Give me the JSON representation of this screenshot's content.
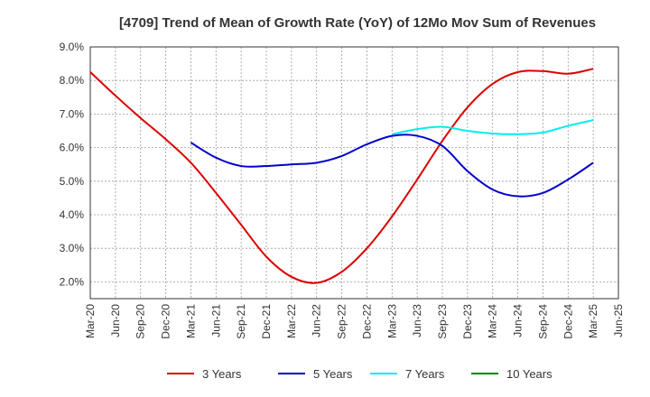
{
  "chart_data": {
    "type": "line",
    "title": "[4709]  Trend of Mean of Growth Rate (YoY) of 12Mo Mov Sum of Revenues",
    "xlabel": "",
    "ylabel": "",
    "ylim": [
      1.5,
      9.0
    ],
    "y_ticks": [
      2.0,
      3.0,
      4.0,
      5.0,
      6.0,
      7.0,
      8.0,
      9.0
    ],
    "y_tick_labels": [
      "2.0%",
      "3.0%",
      "4.0%",
      "5.0%",
      "6.0%",
      "7.0%",
      "8.0%",
      "9.0%"
    ],
    "x_tick_labels": [
      "Mar-20",
      "Jun-20",
      "Sep-20",
      "Dec-20",
      "Mar-21",
      "Jun-21",
      "Sep-21",
      "Dec-21",
      "Mar-22",
      "Jun-22",
      "Sep-22",
      "Dec-22",
      "Mar-23",
      "Jun-23",
      "Sep-23",
      "Dec-23",
      "Mar-24",
      "Jun-24",
      "Sep-24",
      "Dec-24",
      "Mar-25",
      "Jun-25"
    ],
    "grid": true,
    "legend_position": "bottom",
    "series": [
      {
        "name": "3 Years",
        "color": "#dd0000",
        "values": [
          8.25,
          7.55,
          6.88,
          6.25,
          5.55,
          4.65,
          3.7,
          2.75,
          2.15,
          1.97,
          2.3,
          3.0,
          3.95,
          5.05,
          6.2,
          7.2,
          7.9,
          8.25,
          8.28,
          8.2,
          8.35,
          null
        ]
      },
      {
        "name": "5 Years",
        "color": "#0000cc",
        "values": [
          null,
          null,
          null,
          null,
          6.15,
          5.7,
          5.45,
          5.45,
          5.5,
          5.55,
          5.75,
          6.1,
          6.35,
          6.35,
          6.05,
          5.3,
          4.75,
          4.55,
          4.65,
          5.05,
          5.55,
          null
        ]
      },
      {
        "name": "7 Years",
        "color": "#00eeee",
        "values": [
          null,
          null,
          null,
          null,
          null,
          null,
          null,
          null,
          null,
          null,
          null,
          null,
          6.4,
          6.55,
          6.62,
          6.5,
          6.42,
          6.4,
          6.45,
          6.65,
          6.82,
          null
        ]
      },
      {
        "name": "10 Years",
        "color": "#008800",
        "values": [
          null,
          null,
          null,
          null,
          null,
          null,
          null,
          null,
          null,
          null,
          null,
          null,
          null,
          null,
          null,
          null,
          null,
          null,
          null,
          null,
          null,
          null
        ]
      }
    ]
  }
}
